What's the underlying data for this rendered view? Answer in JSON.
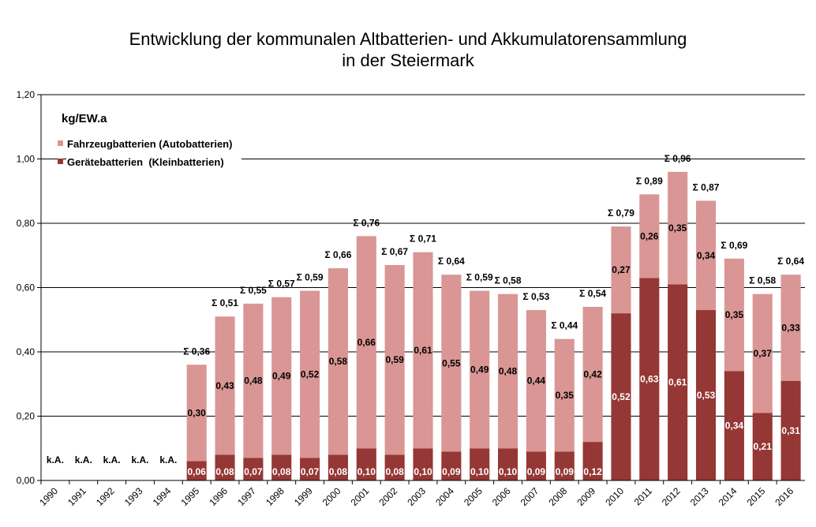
{
  "chart_data": {
    "type": "bar",
    "stacked": true,
    "title_line1": "Entwicklung der kommunalen Altbatterien- und Akkumulatorensammlung",
    "title_line2": "in der Steiermark",
    "unit_label": "kg/EW.a",
    "ylim": [
      0,
      1.2
    ],
    "yticks": [
      "0,00",
      "0,20",
      "0,40",
      "0,60",
      "0,80",
      "1,00",
      "1,20"
    ],
    "grid": true,
    "legend_position": "top-left",
    "categories": [
      "1990",
      "1991",
      "1992",
      "1993",
      "1994",
      "1995",
      "1996",
      "1997",
      "1998",
      "1999",
      "2000",
      "2001",
      "2002",
      "2003",
      "2004",
      "2005",
      "2006",
      "2007",
      "2008",
      "2009",
      "2010",
      "2011",
      "2012",
      "2013",
      "2014",
      "2015",
      "2016"
    ],
    "series": [
      {
        "name": "Gerätebatterien  (Kleinbatterien)",
        "color": "#953735",
        "values": [
          null,
          null,
          null,
          null,
          null,
          0.06,
          0.08,
          0.07,
          0.08,
          0.07,
          0.08,
          0.1,
          0.08,
          0.1,
          0.09,
          0.1,
          0.1,
          0.09,
          0.09,
          0.12,
          0.52,
          0.63,
          0.61,
          0.53,
          0.34,
          0.21,
          0.31
        ],
        "labels": [
          "",
          "",
          "",
          "",
          "",
          "0,06",
          "0,08",
          "0,07",
          "0,08",
          "0,07",
          "0,08",
          "0,10",
          "0,08",
          "0,10",
          "0,09",
          "0,10",
          "0,10",
          "0,09",
          "0,09",
          "0,12",
          "0,52",
          "0,63",
          "0,61",
          "0,53",
          "0,34",
          "0,21",
          "0,31"
        ]
      },
      {
        "name": "Fahrzeugbatterien (Autobatterien)",
        "color": "#D99694",
        "values": [
          null,
          null,
          null,
          null,
          null,
          0.3,
          0.43,
          0.48,
          0.49,
          0.52,
          0.58,
          0.66,
          0.59,
          0.61,
          0.55,
          0.49,
          0.48,
          0.44,
          0.35,
          0.42,
          0.27,
          0.26,
          0.35,
          0.34,
          0.35,
          0.37,
          0.33
        ],
        "labels": [
          "",
          "",
          "",
          "",
          "",
          "0,30",
          "0,43",
          "0,48",
          "0,49",
          "0,52",
          "0,58",
          "0,66",
          "0,59",
          "0,61",
          "0,55",
          "0,49",
          "0,48",
          "0,44",
          "0,35",
          "0,42",
          "0,27",
          "0,26",
          "0,35",
          "0,34",
          "0,35",
          "0,37",
          "0,33"
        ]
      }
    ],
    "totals": [
      null,
      null,
      null,
      null,
      null,
      0.36,
      0.51,
      0.55,
      0.57,
      0.59,
      0.66,
      0.76,
      0.67,
      0.71,
      0.64,
      0.59,
      0.58,
      0.53,
      0.44,
      0.54,
      0.79,
      0.89,
      0.96,
      0.87,
      0.69,
      0.58,
      0.64
    ],
    "total_labels": [
      "k.A.",
      "k.A.",
      "k.A.",
      "k.A.",
      "k.A.",
      "Σ 0,36",
      "Σ 0,51",
      "Σ 0,55",
      "Σ 0,57",
      "Σ 0,59",
      "Σ 0,66",
      "Σ 0,76",
      "Σ 0,67",
      "Σ 0,71",
      "Σ 0,64",
      "Σ 0,59",
      "Σ 0,58",
      "Σ 0,53",
      "Σ 0,44",
      "Σ 0,54",
      "Σ 0,79",
      "Σ 0,89",
      "Σ 0,96",
      "Σ 0,87",
      "Σ 0,69",
      "Σ 0,58",
      "Σ 0,64"
    ]
  }
}
